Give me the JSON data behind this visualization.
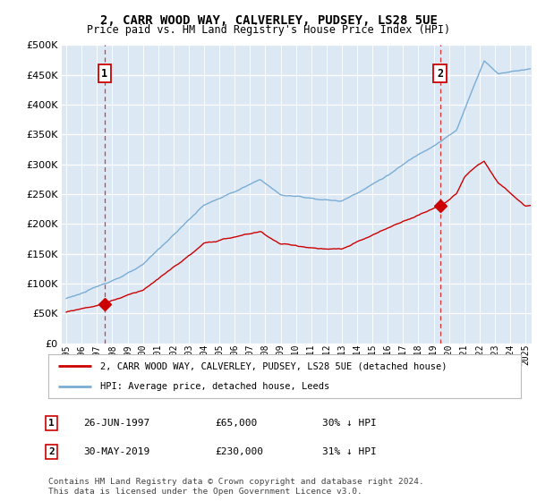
{
  "title": "2, CARR WOOD WAY, CALVERLEY, PUDSEY, LS28 5UE",
  "subtitle": "Price paid vs. HM Land Registry's House Price Index (HPI)",
  "legend_property": "2, CARR WOOD WAY, CALVERLEY, PUDSEY, LS28 5UE (detached house)",
  "legend_hpi": "HPI: Average price, detached house, Leeds",
  "footnote_line1": "Contains HM Land Registry data © Crown copyright and database right 2024.",
  "footnote_line2": "This data is licensed under the Open Government Licence v3.0.",
  "property_color": "#cc0000",
  "hpi_color": "#7aadd4",
  "bg_color": "#dde8f5",
  "transaction1": {
    "date_num": 1997.49,
    "price": 65000,
    "label": "1"
  },
  "transaction2": {
    "date_num": 2019.41,
    "price": 230000,
    "label": "2"
  },
  "date1_str": "26-JUN-1997",
  "price1_str": "£65,000",
  "pct1_str": "30% ↓ HPI",
  "date2_str": "30-MAY-2019",
  "price2_str": "£230,000",
  "pct2_str": "31% ↓ HPI",
  "ylim": [
    0,
    500000
  ],
  "xlim": [
    1994.7,
    2025.4
  ],
  "yticks": [
    0,
    50000,
    100000,
    150000,
    200000,
    250000,
    300000,
    350000,
    400000,
    450000,
    500000
  ]
}
